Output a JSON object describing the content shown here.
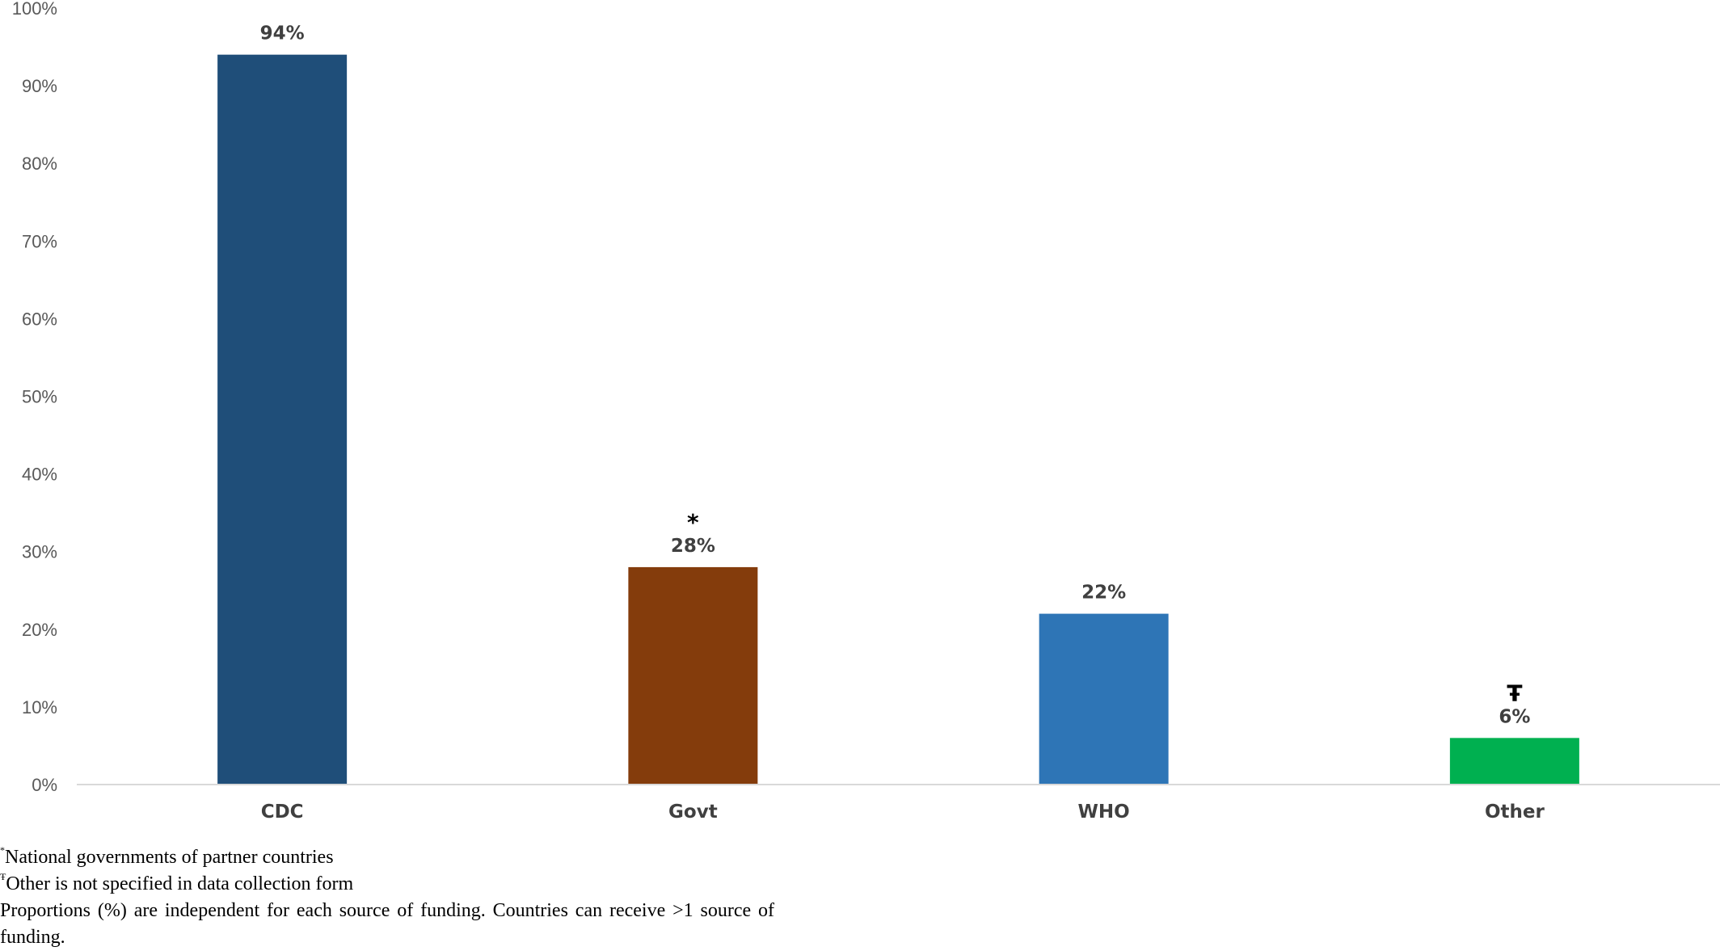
{
  "chart_data": {
    "type": "bar",
    "categories": [
      "CDC",
      "Govt",
      "WHO",
      "Other"
    ],
    "values": [
      94,
      28,
      22,
      6
    ],
    "data_labels": [
      "94%",
      "28%",
      "22%",
      "6%"
    ],
    "markers": [
      "",
      "*",
      "",
      "Ŧ"
    ],
    "colors": [
      "#1F4E79",
      "#843C0C",
      "#2E75B6",
      "#00B050"
    ],
    "ylim": [
      0,
      100
    ],
    "yticks": [
      0,
      10,
      20,
      30,
      40,
      50,
      60,
      70,
      80,
      90,
      100
    ],
    "ytick_labels": [
      "0%",
      "10%",
      "20%",
      "30%",
      "40%",
      "50%",
      "60%",
      "70%",
      "80%",
      "90%",
      "100%"
    ],
    "grid": false,
    "legend": "none",
    "title": "",
    "xlabel": "",
    "ylabel": ""
  },
  "footnotes": {
    "govt_marker": "*",
    "govt_text": "National governments of partner countries",
    "other_marker": "Ŧ",
    "other_text": "Other is not specified in data collection form",
    "proportions_text": "Proportions (%) are independent for each source of funding. Countries can receive >1 source of funding."
  }
}
